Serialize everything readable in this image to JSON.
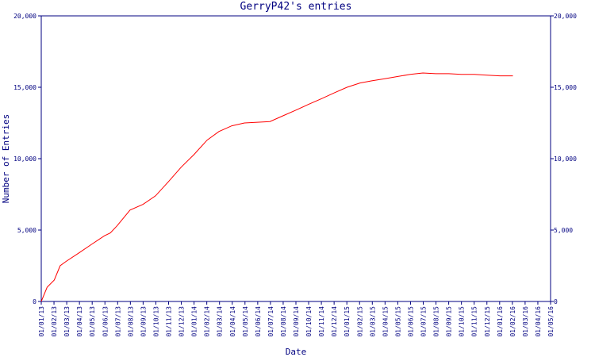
{
  "chart_data": {
    "type": "line",
    "title": "GerryP42's entries",
    "xlabel": "Date",
    "ylabel": "Number of Entries",
    "ylim": [
      0,
      20000
    ],
    "y_ticks": [
      0,
      5000,
      10000,
      15000,
      20000
    ],
    "y_tick_labels": [
      "0",
      "5,000",
      "10,000",
      "15,000",
      "20,000"
    ],
    "grid": false,
    "x_labels": [
      "01/01/13",
      "01/02/13",
      "01/03/13",
      "01/04/13",
      "01/05/13",
      "01/06/13",
      "01/07/13",
      "01/08/13",
      "01/09/13",
      "01/10/13",
      "01/11/13",
      "01/12/13",
      "01/01/14",
      "01/02/14",
      "01/03/14",
      "01/04/14",
      "01/05/14",
      "01/06/14",
      "01/07/14",
      "01/08/14",
      "01/09/14",
      "01/10/14",
      "01/11/14",
      "01/12/14",
      "01/01/15",
      "01/02/15",
      "01/03/15",
      "01/04/15",
      "01/05/15",
      "01/06/15",
      "01/07/15",
      "01/08/15",
      "01/09/15",
      "01/10/15",
      "01/11/15",
      "01/12/15",
      "01/01/16",
      "01/02/16",
      "01/03/16",
      "01/04/16",
      "01/05/16"
    ],
    "series": [
      {
        "color": "#ff0000",
        "points": [
          [
            "01/01/13",
            0
          ],
          [
            "15/01/13",
            1000
          ],
          [
            "01/02/13",
            1500
          ],
          [
            "15/02/13",
            2500
          ],
          [
            "01/03/13",
            2800
          ],
          [
            "01/04/13",
            3400
          ],
          [
            "01/05/13",
            4000
          ],
          [
            "01/06/13",
            4600
          ],
          [
            "15/06/13",
            4800
          ],
          [
            "01/07/13",
            5300
          ],
          [
            "01/08/13",
            6400
          ],
          [
            "01/09/13",
            6800
          ],
          [
            "01/10/13",
            7400
          ],
          [
            "01/11/13",
            8400
          ],
          [
            "01/12/13",
            9400
          ],
          [
            "01/01/14",
            10300
          ],
          [
            "01/02/14",
            11300
          ],
          [
            "01/03/14",
            11900
          ],
          [
            "01/04/14",
            12300
          ],
          [
            "01/05/14",
            12500
          ],
          [
            "01/06/14",
            12550
          ],
          [
            "01/07/14",
            12600
          ],
          [
            "01/08/14",
            13000
          ],
          [
            "01/09/14",
            13400
          ],
          [
            "01/10/14",
            13800
          ],
          [
            "01/11/14",
            14200
          ],
          [
            "01/12/14",
            14600
          ],
          [
            "01/01/15",
            15000
          ],
          [
            "01/02/15",
            15300
          ],
          [
            "01/03/15",
            15450
          ],
          [
            "01/04/15",
            15600
          ],
          [
            "01/05/15",
            15750
          ],
          [
            "01/06/15",
            15900
          ],
          [
            "01/07/15",
            16000
          ],
          [
            "01/08/15",
            15950
          ],
          [
            "01/09/15",
            15950
          ],
          [
            "01/10/15",
            15900
          ],
          [
            "01/11/15",
            15900
          ],
          [
            "01/12/15",
            15850
          ],
          [
            "01/01/16",
            15800
          ],
          [
            "01/02/16",
            15800
          ]
        ]
      }
    ]
  }
}
